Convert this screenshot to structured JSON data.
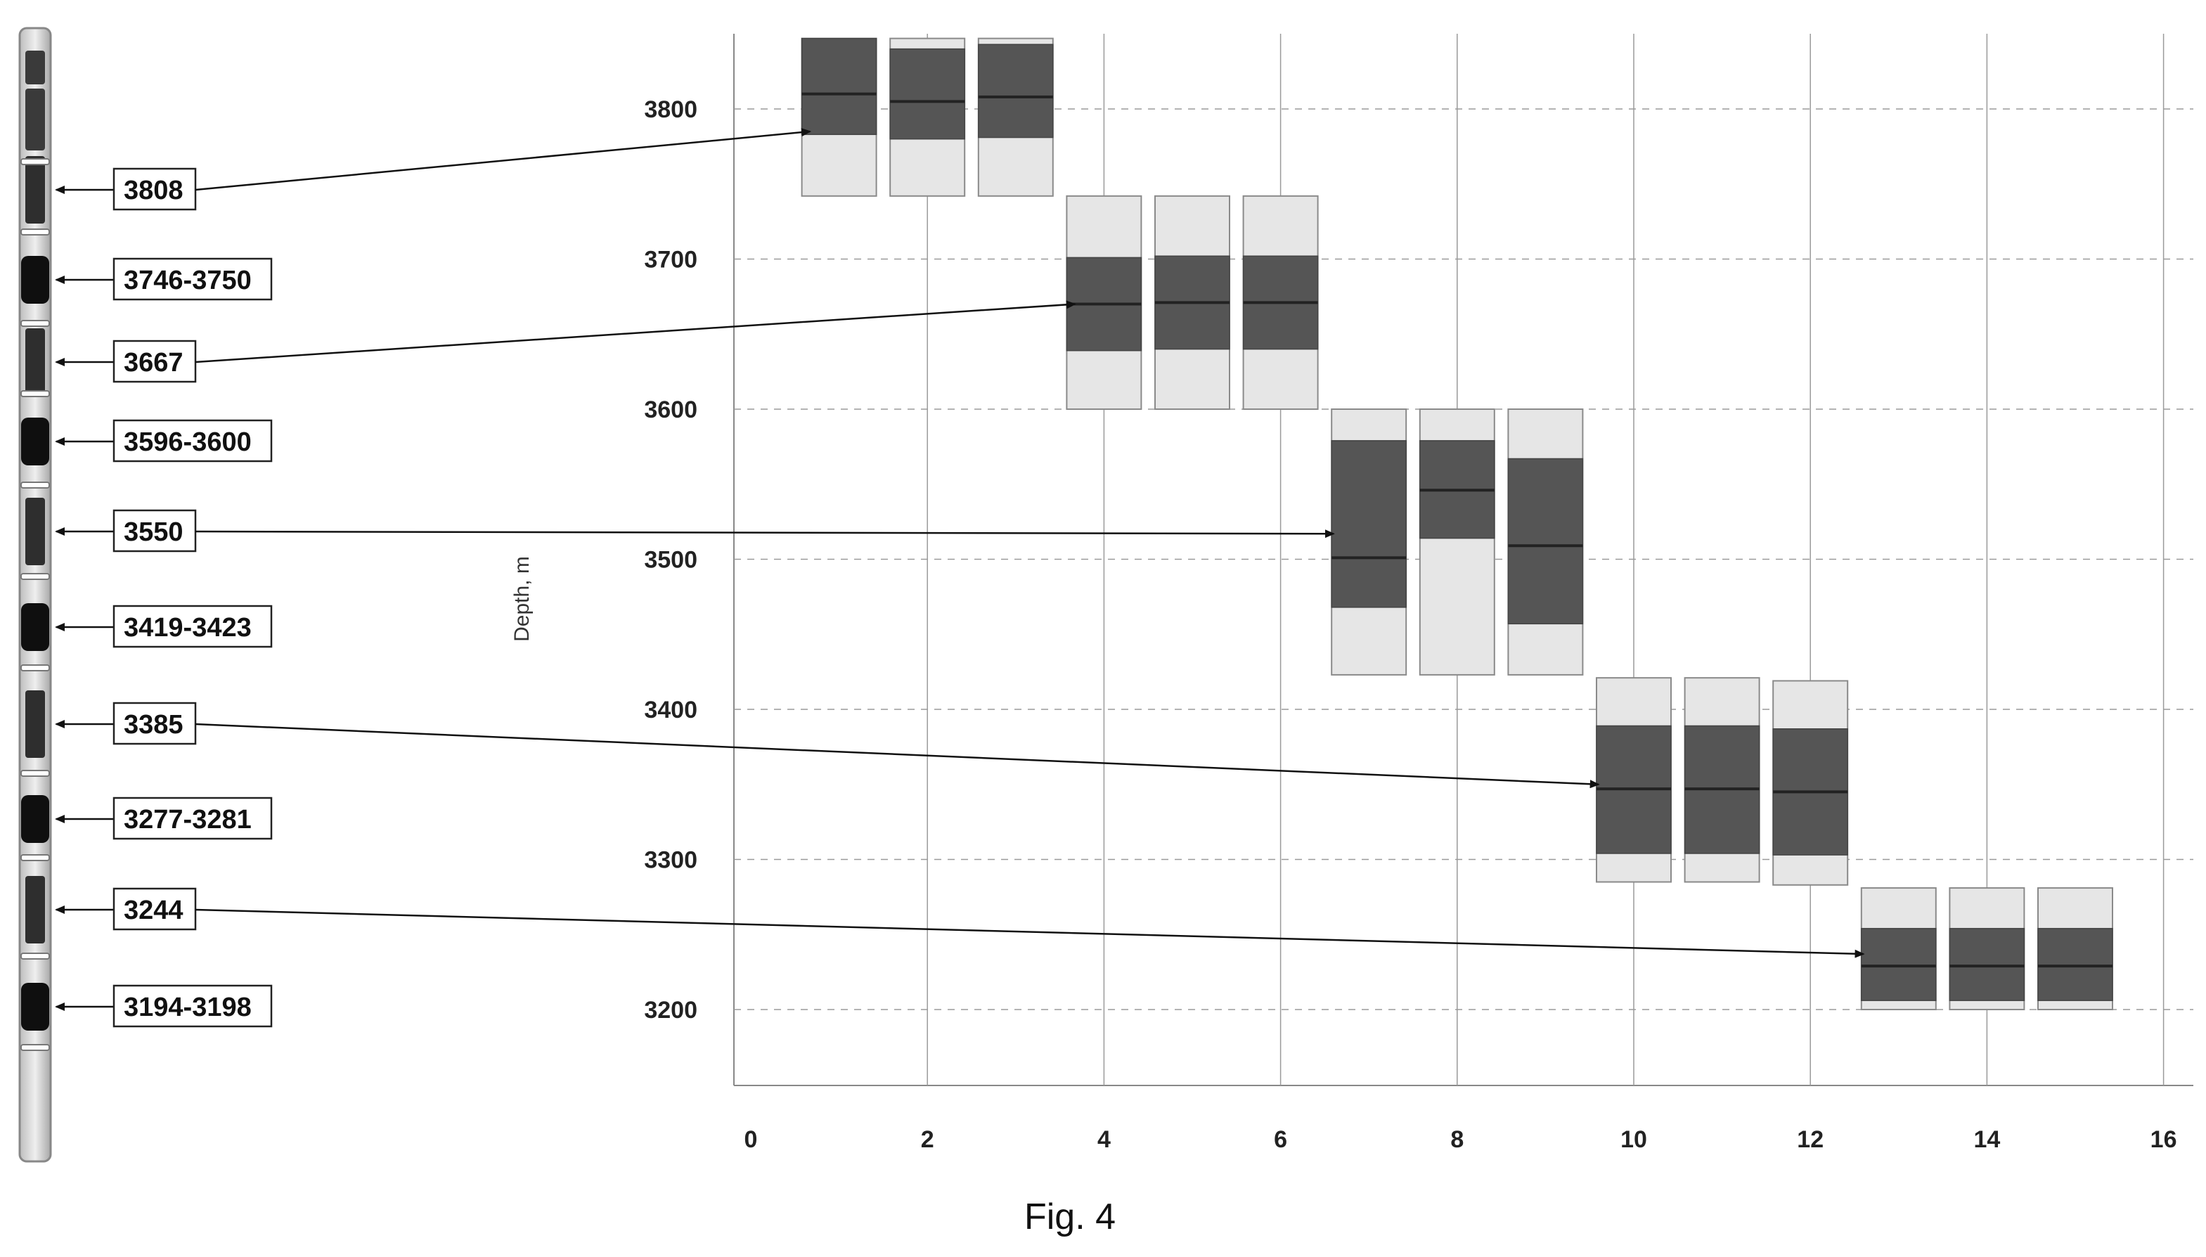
{
  "caption": "Fig. 4",
  "chart_data": {
    "type": "box",
    "ylabel": "Depth, m",
    "xlabel": "",
    "xlim": [
      0,
      16
    ],
    "ylim": [
      3150,
      3850
    ],
    "x_ticks": [
      0,
      2,
      4,
      6,
      8,
      10,
      12,
      14,
      16
    ],
    "y_ticks": [
      3200,
      3300,
      3400,
      3500,
      3600,
      3700,
      3800
    ],
    "grid": true,
    "boxes": [
      {
        "x": 1,
        "low": 3742,
        "q1": 3783,
        "median": 3810,
        "q3": 3847,
        "high": 3847
      },
      {
        "x": 2,
        "low": 3742,
        "q1": 3780,
        "median": 3805,
        "q3": 3840,
        "high": 3847
      },
      {
        "x": 3,
        "low": 3742,
        "q1": 3781,
        "median": 3808,
        "q3": 3843,
        "high": 3847
      },
      {
        "x": 4,
        "low": 3600,
        "q1": 3639,
        "median": 3670,
        "q3": 3701,
        "high": 3742
      },
      {
        "x": 5,
        "low": 3600,
        "q1": 3640,
        "median": 3671,
        "q3": 3702,
        "high": 3742
      },
      {
        "x": 6,
        "low": 3600,
        "q1": 3640,
        "median": 3671,
        "q3": 3702,
        "high": 3742
      },
      {
        "x": 7,
        "low": 3423,
        "q1": 3468,
        "median": 3501,
        "q3": 3579,
        "high": 3600
      },
      {
        "x": 8,
        "low": 3423,
        "q1": 3514,
        "median": 3546,
        "q3": 3579,
        "high": 3600
      },
      {
        "x": 9,
        "low": 3423,
        "q1": 3457,
        "median": 3509,
        "q3": 3567,
        "high": 3600
      },
      {
        "x": 10,
        "low": 3285,
        "q1": 3304,
        "median": 3347,
        "q3": 3389,
        "high": 3421
      },
      {
        "x": 11,
        "low": 3285,
        "q1": 3304,
        "median": 3347,
        "q3": 3389,
        "high": 3421
      },
      {
        "x": 12,
        "low": 3283,
        "q1": 3303,
        "median": 3345,
        "q3": 3387,
        "high": 3419
      },
      {
        "x": 13,
        "low": 3200,
        "q1": 3206,
        "median": 3229,
        "q3": 3254,
        "high": 3281
      },
      {
        "x": 14,
        "low": 3200,
        "q1": 3206,
        "median": 3229,
        "q3": 3254,
        "high": 3281
      },
      {
        "x": 15,
        "low": 3200,
        "q1": 3206,
        "median": 3229,
        "q3": 3254,
        "high": 3281
      }
    ],
    "annotations": [
      {
        "text": "3808",
        "target": {
          "x": 0.67,
          "y": 3785
        }
      },
      {
        "text": "3746-3750"
      },
      {
        "text": "3667",
        "target": {
          "x": 3.67,
          "y": 3670
        }
      },
      {
        "text": "3596-3600"
      },
      {
        "text": "3550",
        "target": {
          "x": 6.6,
          "y": 3517
        }
      },
      {
        "text": "3419-3423"
      },
      {
        "text": "3385",
        "target": {
          "x": 9.6,
          "y": 3350
        }
      },
      {
        "text": "3277-3281"
      },
      {
        "text": "3244",
        "target": {
          "x": 12.6,
          "y": 3237
        }
      },
      {
        "text": "3194-3198"
      }
    ],
    "colors": {
      "inner": "#555555",
      "outer": "#e6e6e6",
      "median": "#222222",
      "grid": "#9a9a9a",
      "axis": "#888888"
    }
  }
}
